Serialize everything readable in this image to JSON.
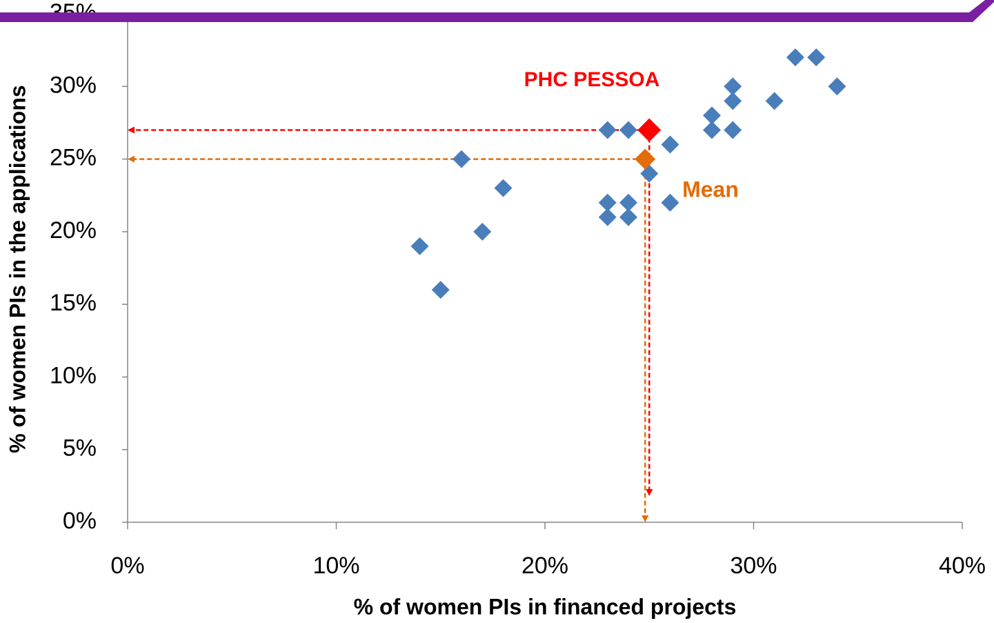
{
  "chart_data": {
    "type": "scatter",
    "xlabel": "% of women PIs in financed projects",
    "ylabel": "% of women PIs in the applications",
    "xlim": [
      0,
      40
    ],
    "xticks": [
      {
        "value": 0,
        "label": "0%"
      },
      {
        "value": 10,
        "label": "10%"
      },
      {
        "value": 20,
        "label": "20%"
      },
      {
        "value": 30,
        "label": "30%"
      },
      {
        "value": 40,
        "label": "40%"
      }
    ],
    "ylim": [
      0,
      35
    ],
    "yticks": [
      {
        "value": 0,
        "label": "0%"
      },
      {
        "value": 5,
        "label": "5%"
      },
      {
        "value": 10,
        "label": "10%"
      },
      {
        "value": 15,
        "label": "15%"
      },
      {
        "value": 20,
        "label": "20%"
      },
      {
        "value": 25,
        "label": "25%"
      },
      {
        "value": 30,
        "label": "30%"
      },
      {
        "value": 35,
        "label": "35%"
      }
    ],
    "series": [
      {
        "color": "#4a7ebb",
        "x": [
          14,
          15,
          16,
          17,
          18,
          23,
          24,
          23,
          24,
          23,
          24,
          25,
          26,
          26,
          28,
          28,
          29,
          29,
          29,
          31,
          32,
          33,
          34
        ],
        "values": [
          19,
          16,
          25,
          20,
          23,
          27,
          27,
          22,
          22,
          21,
          21,
          24,
          26,
          22,
          28,
          27,
          30,
          29,
          27,
          29,
          32,
          32,
          30
        ]
      },
      {
        "name": "PHC PESSOA",
        "color": "#ff0000",
        "x": [
          25
        ],
        "values": [
          27
        ]
      },
      {
        "name": "Mean",
        "color": "#e36c09",
        "x": [
          24.8
        ],
        "values": [
          25
        ]
      }
    ]
  }
}
